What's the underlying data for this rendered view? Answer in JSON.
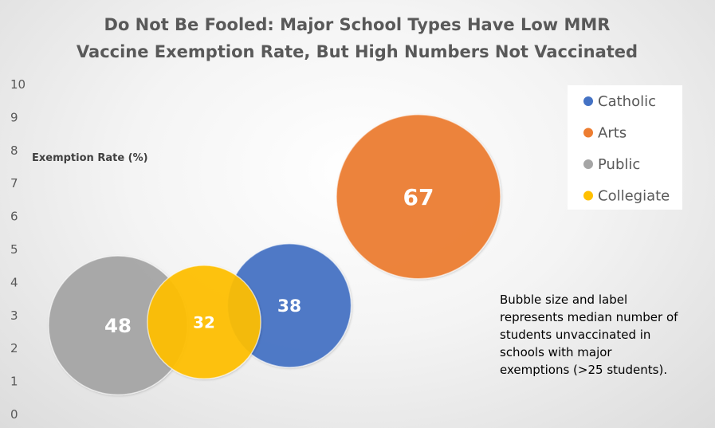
{
  "chart_data": {
    "type": "bubble",
    "title": "Do Not Be Fooled: Major School Types Have Low MMR Vaccine Exemption Rate, But High Numbers Not Vaccinated",
    "title_lines": [
      "Do Not Be Fooled: Major School Types Have Low MMR",
      "Vaccine Exemption Rate, But High Numbers Not Vaccinated"
    ],
    "ylabel": "Exemption Rate (%)",
    "ylim": [
      0,
      10
    ],
    "yticks": [
      "0",
      "1",
      "2",
      "3",
      "4",
      "5",
      "6",
      "7",
      "8",
      "9",
      "10"
    ],
    "grid": false,
    "legend_position": "top-right",
    "series": [
      {
        "name": "Catholic",
        "color": "#4472C4",
        "y": 3.3,
        "size": 38,
        "label": "38"
      },
      {
        "name": "Arts",
        "color": "#ED7D31",
        "y": 6.6,
        "size": 67,
        "label": "67"
      },
      {
        "name": "Public",
        "color": "#A5A5A5",
        "y": 2.7,
        "size": 48,
        "label": "48"
      },
      {
        "name": "Collegiate",
        "color": "#FFC000",
        "y": 2.8,
        "size": 32,
        "label": "32"
      }
    ],
    "annotation": [
      "Bubble size and label",
      "represents median number of",
      "students unvaccinated  in",
      "schools with major",
      "exemptions (>25 students)."
    ]
  }
}
